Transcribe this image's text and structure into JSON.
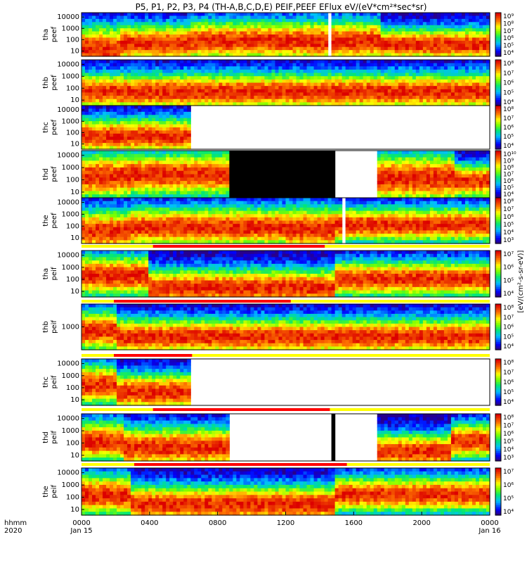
{
  "chart_data": {
    "type": "heatmap",
    "title": "P5, P1, P2, P3, P4 (TH-A,B,C,D,E) PEIF,PEEF EFlux eV/(eV*cm²*sec*sr)",
    "x_label_left": [
      "hhmm",
      "2020"
    ],
    "x_ticks": [
      {
        "t": 0,
        "label": "0000",
        "sub": "Jan 15"
      },
      {
        "t": 4,
        "label": "0400",
        "sub": ""
      },
      {
        "t": 8,
        "label": "0800",
        "sub": ""
      },
      {
        "t": 12,
        "label": "1200",
        "sub": ""
      },
      {
        "t": 16,
        "label": "1600",
        "sub": ""
      },
      {
        "t": 20,
        "label": "2000",
        "sub": ""
      },
      {
        "t": 24,
        "label": "0000",
        "sub": "Jan 16"
      }
    ],
    "xlim_hours": [
      0,
      24
    ],
    "colorbar_label": "[eV/(cm²-s-sr-eV)]",
    "panels": [
      {
        "ylabel": [
          "tha",
          "peef"
        ],
        "yticks": [
          "10",
          "100",
          "1000",
          "10000"
        ],
        "cb_ticks": [
          "10⁴",
          "10⁵",
          "10⁶",
          "10⁷",
          "10⁸",
          "10⁹"
        ],
        "coverage": [
          0,
          24
        ],
        "gaps": [
          [
            14.4,
            14.6
          ]
        ],
        "black_spans": [],
        "mean_level": 0.62,
        "zones": [
          [
            0,
            2.2,
            0.78,
            0.22
          ],
          [
            2.2,
            6.5,
            0.58,
            0.14
          ],
          [
            6.5,
            13.2,
            0.5,
            0.16
          ],
          [
            13.2,
            17.5,
            0.52,
            0.18
          ],
          [
            17.5,
            24,
            0.62,
            0.1
          ]
        ],
        "bar_above": null
      },
      {
        "ylabel": [
          "thb",
          "peef"
        ],
        "yticks": [
          "10",
          "100",
          "1000",
          "10000"
        ],
        "cb_ticks": [
          "10⁴",
          "10⁵",
          "10⁶",
          "10⁷",
          "10⁸"
        ],
        "coverage": [
          0,
          24
        ],
        "gaps": [],
        "black_spans": [],
        "mean_level": 0.55,
        "zones": [
          [
            0,
            24,
            0.58,
            0.12
          ]
        ],
        "bar_above": null
      },
      {
        "ylabel": [
          "thc",
          "peef"
        ],
        "yticks": [
          "10",
          "100",
          "1000",
          "10000"
        ],
        "cb_ticks": [
          "10⁴",
          "10⁵",
          "10⁶",
          "10⁷",
          "10⁸"
        ],
        "coverage": [
          0,
          6.5
        ],
        "gaps": [],
        "black_spans": [],
        "mean_level": 0.55,
        "zones": [
          [
            0,
            6.5,
            0.58,
            0.12
          ]
        ],
        "bar_above": null
      },
      {
        "ylabel": [
          "thd",
          "peef"
        ],
        "yticks": [
          "10",
          "100",
          "1000",
          "10000"
        ],
        "cb_ticks": [
          "10⁴",
          "10⁵",
          "10⁶",
          "10⁷",
          "10⁸",
          "10⁹",
          "10¹⁰"
        ],
        "coverage": [
          0,
          24
        ],
        "gaps": [
          [
            14.9,
            17.4
          ]
        ],
        "black_spans": [
          [
            8.7,
            14.9
          ]
        ],
        "mean_level": 0.35,
        "zones": [
          [
            0,
            3,
            0.35,
            0.18
          ],
          [
            3,
            8.7,
            0.3,
            0.16
          ],
          [
            17.4,
            22,
            0.42,
            0.2
          ],
          [
            22,
            24,
            0.5,
            0.08
          ]
        ],
        "bar_above": null
      },
      {
        "ylabel": [
          "the",
          "peef"
        ],
        "yticks": [
          "10",
          "100",
          "1000",
          "10000"
        ],
        "cb_ticks": [
          "10³",
          "10⁴",
          "10⁵",
          "10⁶",
          "10⁷",
          "10⁸"
        ],
        "coverage": [
          0,
          24
        ],
        "gaps": [
          [
            15.3,
            15.5
          ]
        ],
        "black_spans": [],
        "mean_level": 0.5,
        "zones": [
          [
            0,
            3,
            0.62,
            0.16
          ],
          [
            3,
            12,
            0.5,
            0.14
          ],
          [
            12,
            15,
            0.55,
            0.18
          ],
          [
            15,
            24,
            0.42,
            0.1
          ]
        ],
        "bar_above": null
      },
      {
        "ylabel": [
          "tha",
          "peif"
        ],
        "yticks": [
          "10",
          "100",
          "1000",
          "10000"
        ],
        "cb_ticks": [
          "10⁴",
          "10⁵",
          "10⁶",
          "10⁷"
        ],
        "coverage": [
          0,
          24
        ],
        "gaps": [],
        "black_spans": [],
        "mean_level": 0.55,
        "zones": [
          [
            0,
            4,
            0.35,
            0.14
          ],
          [
            4,
            15,
            0.72,
            0.12
          ],
          [
            15,
            24,
            0.45,
            0.1
          ]
        ],
        "bar_above": {
          "yellow": [
            [
              0,
              24
            ]
          ],
          "red": [
            [
              4.2,
              14.3
            ]
          ]
        }
      },
      {
        "ylabel": [
          "thb",
          "peif"
        ],
        "yticks": [
          "1000"
        ],
        "cb_ticks": [
          "10⁴",
          "10⁵",
          "10⁶",
          "10⁷",
          "10⁸"
        ],
        "coverage": [
          0,
          24
        ],
        "gaps": [],
        "black_spans": [],
        "mean_level": 0.55,
        "zones": [
          [
            0,
            2,
            0.42,
            0.14
          ],
          [
            2,
            24,
            0.6,
            0.12
          ]
        ],
        "bar_above": {
          "yellow": [
            [
              0,
              24
            ]
          ],
          "red": [
            [
              1.9,
              12.3
            ]
          ]
        }
      },
      {
        "ylabel": [
          "thc",
          "peif"
        ],
        "yticks": [
          "10",
          "100",
          "1000",
          "10000"
        ],
        "cb_ticks": [
          "10⁴",
          "10⁵",
          "10⁶",
          "10⁷",
          "10⁸"
        ],
        "coverage": [
          0,
          6.5
        ],
        "gaps": [],
        "black_spans": [],
        "mean_level": 0.5,
        "zones": [
          [
            0,
            2,
            0.38,
            0.14
          ],
          [
            2,
            6.5,
            0.6,
            0.12
          ]
        ],
        "bar_above": {
          "yellow": [
            [
              0,
              24
            ]
          ],
          "red": [
            [
              1.9,
              6.5
            ]
          ]
        }
      },
      {
        "ylabel": [
          "thd",
          "peif"
        ],
        "yticks": [
          "10",
          "100",
          "1000",
          "10000"
        ],
        "cb_ticks": [
          "10³",
          "10⁴",
          "10⁵",
          "10⁶",
          "10⁷",
          "10⁸"
        ],
        "coverage": [
          0,
          24
        ],
        "gaps": [
          [
            8.7,
            14.6
          ],
          [
            14.9,
            17.4
          ]
        ],
        "black_spans": [
          [
            14.6,
            14.9
          ]
        ],
        "mean_level": 0.55,
        "zones": [
          [
            0,
            2.5,
            0.42,
            0.14
          ],
          [
            2.5,
            8.7,
            0.6,
            0.14
          ],
          [
            17.4,
            21.8,
            0.72,
            0.1
          ],
          [
            21.8,
            24,
            0.4,
            0.1
          ]
        ],
        "bar_above": {
          "yellow": [
            [
              0,
              24
            ]
          ],
          "red": [
            [
              4.2,
              14.6
            ]
          ]
        }
      },
      {
        "ylabel": [
          "the",
          "peif"
        ],
        "yticks": [
          "10",
          "100",
          "1000",
          "10000"
        ],
        "cb_ticks": [
          "10⁴",
          "10⁵",
          "10⁶",
          "10⁷"
        ],
        "coverage": [
          0,
          24
        ],
        "gaps": [],
        "black_spans": [],
        "mean_level": 0.5,
        "zones": [
          [
            0,
            3,
            0.4,
            0.14
          ],
          [
            3,
            15,
            0.68,
            0.12
          ],
          [
            15,
            24,
            0.38,
            0.1
          ]
        ],
        "bar_above": {
          "yellow": [
            [
              0,
              24
            ]
          ],
          "red": [
            [
              3.1,
              15.6
            ]
          ]
        }
      }
    ]
  }
}
